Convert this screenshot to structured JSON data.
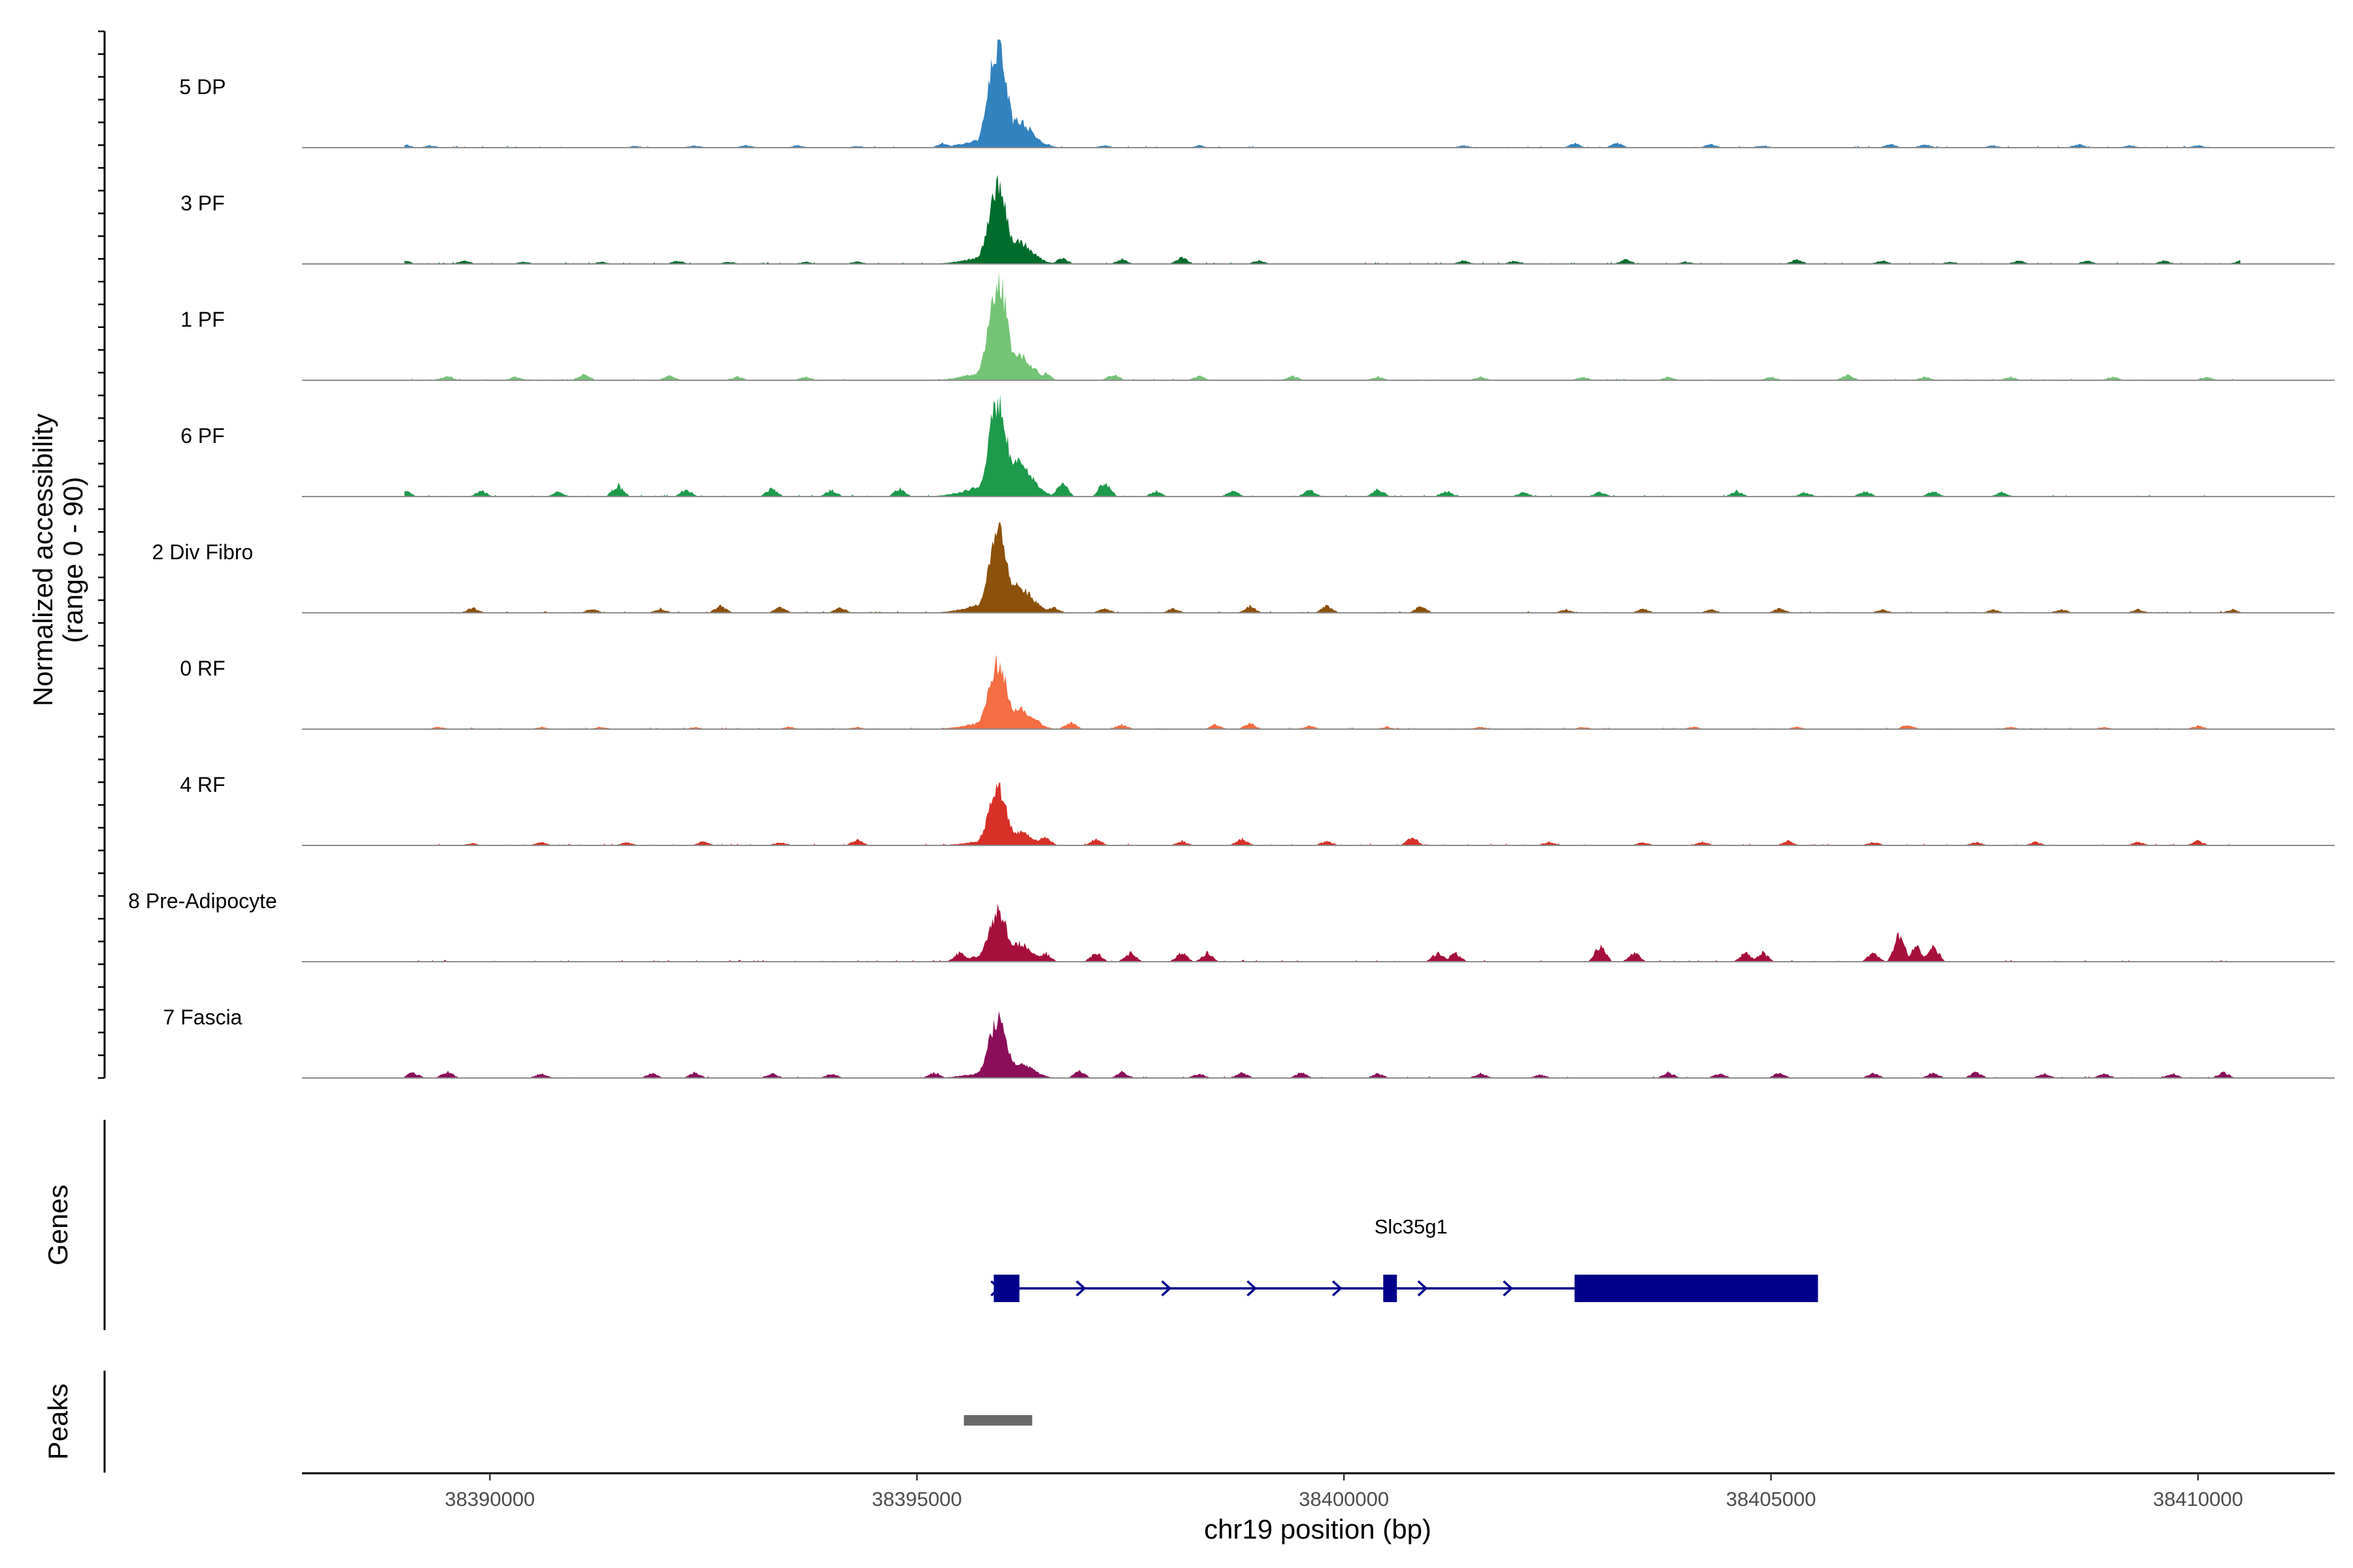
{
  "chart_data": {
    "type": "area",
    "title": "",
    "ylabel": "Normalized accessibility\n(range 0 - 90)",
    "xlabel": "chr19 position (bp)",
    "xlim": [
      38387800,
      38411600
    ],
    "ylim": [
      0,
      90
    ],
    "x_ticks": [
      38390000,
      38395000,
      38400000,
      38405000,
      38410000
    ],
    "x_tick_labels": [
      "38390000",
      "38395000",
      "38400000",
      "38405000",
      "38410000"
    ],
    "series": [
      {
        "name": "5 DP",
        "color": "#3182BD",
        "peak": 90,
        "shoulder": 24,
        "bumps": [
          [
            38389000,
            3
          ],
          [
            38389300,
            2
          ],
          [
            38391700,
            1.5
          ],
          [
            38392400,
            2
          ],
          [
            38393000,
            2
          ],
          [
            38393600,
            2
          ],
          [
            38394300,
            1.5
          ],
          [
            38395300,
            4
          ],
          [
            38396500,
            4
          ],
          [
            38397200,
            2
          ],
          [
            38398300,
            2
          ],
          [
            38401400,
            2
          ],
          [
            38402700,
            4
          ],
          [
            38403200,
            4
          ],
          [
            38404300,
            3
          ],
          [
            38404900,
            2
          ],
          [
            38406400,
            3
          ],
          [
            38406800,
            3
          ],
          [
            38407600,
            2
          ],
          [
            38408600,
            3
          ],
          [
            38409200,
            2
          ],
          [
            38410000,
            2
          ],
          [
            38410700,
            2
          ]
        ]
      },
      {
        "name": "3 PF",
        "color": "#006D2C",
        "peak": 72,
        "shoulder": 20,
        "bumps": [
          [
            38389000,
            3
          ],
          [
            38389700,
            3
          ],
          [
            38390400,
            2
          ],
          [
            38391300,
            2
          ],
          [
            38392200,
            3
          ],
          [
            38392800,
            2
          ],
          [
            38393700,
            2
          ],
          [
            38394300,
            2
          ],
          [
            38396700,
            5
          ],
          [
            38397400,
            4
          ],
          [
            38398100,
            6
          ],
          [
            38399000,
            3
          ],
          [
            38401400,
            3
          ],
          [
            38402000,
            3
          ],
          [
            38403300,
            4
          ],
          [
            38404000,
            2
          ],
          [
            38405300,
            4
          ],
          [
            38406300,
            3
          ],
          [
            38407100,
            2
          ],
          [
            38407900,
            3
          ],
          [
            38408700,
            3
          ],
          [
            38409600,
            3
          ],
          [
            38410500,
            3
          ]
        ]
      },
      {
        "name": "1 PF",
        "color": "#74C476",
        "peak": 90,
        "shoulder": 22,
        "bumps": [
          [
            38389500,
            4
          ],
          [
            38390300,
            3
          ],
          [
            38391100,
            6
          ],
          [
            38392100,
            4
          ],
          [
            38392900,
            3
          ],
          [
            38393700,
            3
          ],
          [
            38396500,
            6
          ],
          [
            38397300,
            5
          ],
          [
            38398300,
            4
          ],
          [
            38399400,
            4
          ],
          [
            38400400,
            3
          ],
          [
            38401600,
            3
          ],
          [
            38402800,
            3
          ],
          [
            38403800,
            3
          ],
          [
            38405000,
            3
          ],
          [
            38405900,
            5
          ],
          [
            38406800,
            3
          ],
          [
            38407800,
            3
          ],
          [
            38409000,
            3
          ],
          [
            38410100,
            3
          ]
        ]
      },
      {
        "name": "6 PF",
        "color": "#1D9A4B",
        "peak": 85,
        "shoulder": 30,
        "bumps": [
          [
            38389000,
            6
          ],
          [
            38389900,
            5
          ],
          [
            38390800,
            4
          ],
          [
            38391500,
            10
          ],
          [
            38392300,
            6
          ],
          [
            38393300,
            7
          ],
          [
            38394000,
            6
          ],
          [
            38394800,
            7
          ],
          [
            38396700,
            12
          ],
          [
            38397200,
            14
          ],
          [
            38397800,
            5
          ],
          [
            38398700,
            5
          ],
          [
            38399600,
            6
          ],
          [
            38400400,
            7
          ],
          [
            38401200,
            5
          ],
          [
            38402100,
            4
          ],
          [
            38403000,
            4
          ],
          [
            38404600,
            5
          ],
          [
            38405400,
            4
          ],
          [
            38406100,
            5
          ],
          [
            38406900,
            5
          ],
          [
            38407700,
            4
          ]
        ]
      },
      {
        "name": "2 Div Fibro",
        "color": "#8C510A",
        "peak": 72,
        "shoulder": 24,
        "bumps": [
          [
            38389800,
            5
          ],
          [
            38391200,
            4
          ],
          [
            38392000,
            4
          ],
          [
            38392700,
            6
          ],
          [
            38393400,
            5
          ],
          [
            38394100,
            5
          ],
          [
            38396600,
            5
          ],
          [
            38397200,
            4
          ],
          [
            38398000,
            4
          ],
          [
            38398900,
            6
          ],
          [
            38399800,
            7
          ],
          [
            38400900,
            6
          ],
          [
            38402600,
            3
          ],
          [
            38403500,
            4
          ],
          [
            38404300,
            3
          ],
          [
            38405100,
            4
          ],
          [
            38406300,
            3
          ],
          [
            38407600,
            3
          ],
          [
            38408400,
            3
          ],
          [
            38409300,
            3
          ],
          [
            38410400,
            3
          ]
        ]
      },
      {
        "name": "0 RF",
        "color": "#F46D43",
        "peak": 58,
        "shoulder": 18,
        "bumps": [
          [
            38389400,
            2
          ],
          [
            38390600,
            2
          ],
          [
            38391300,
            2
          ],
          [
            38392400,
            2
          ],
          [
            38393500,
            2
          ],
          [
            38394300,
            2
          ],
          [
            38396400,
            8
          ],
          [
            38396800,
            6
          ],
          [
            38397400,
            4
          ],
          [
            38398500,
            4
          ],
          [
            38398900,
            5
          ],
          [
            38399600,
            3
          ],
          [
            38400500,
            2
          ],
          [
            38401600,
            2
          ],
          [
            38402800,
            2
          ],
          [
            38404100,
            2
          ],
          [
            38405300,
            2
          ],
          [
            38406600,
            4
          ],
          [
            38407800,
            2
          ],
          [
            38408900,
            2
          ],
          [
            38410000,
            3
          ]
        ]
      },
      {
        "name": "4 RF",
        "color": "#D73027",
        "peak": 50,
        "shoulder": 12,
        "bumps": [
          [
            38389800,
            2
          ],
          [
            38390600,
            3
          ],
          [
            38391600,
            3
          ],
          [
            38392500,
            4
          ],
          [
            38393400,
            3
          ],
          [
            38394300,
            5
          ],
          [
            38396500,
            8
          ],
          [
            38397100,
            6
          ],
          [
            38398100,
            4
          ],
          [
            38398800,
            6
          ],
          [
            38399800,
            4
          ],
          [
            38400800,
            7
          ],
          [
            38402400,
            3
          ],
          [
            38403500,
            3
          ],
          [
            38404200,
            3
          ],
          [
            38405200,
            4
          ],
          [
            38406200,
            3
          ],
          [
            38407400,
            3
          ],
          [
            38408100,
            3
          ],
          [
            38409300,
            3
          ],
          [
            38410000,
            4
          ]
        ]
      },
      {
        "name": "8 Pre-Adipocyte",
        "color": "#A50F3C",
        "peak": 45,
        "shoulder": 16,
        "bumps": [
          [
            38395500,
            8
          ],
          [
            38396000,
            10
          ],
          [
            38396500,
            8
          ],
          [
            38397100,
            8
          ],
          [
            38397500,
            8
          ],
          [
            38398100,
            8
          ],
          [
            38398400,
            8
          ],
          [
            38401100,
            8
          ],
          [
            38401300,
            8
          ],
          [
            38403000,
            14
          ],
          [
            38403400,
            8
          ],
          [
            38404700,
            8
          ],
          [
            38404900,
            8
          ],
          [
            38406200,
            8
          ],
          [
            38406500,
            24
          ],
          [
            38406700,
            14
          ],
          [
            38406900,
            14
          ]
        ]
      },
      {
        "name": "7 Fascia",
        "color": "#8B0E5A",
        "peak": 52,
        "shoulder": 14,
        "bumps": [
          [
            38389100,
            5
          ],
          [
            38389500,
            6
          ],
          [
            38390600,
            4
          ],
          [
            38391900,
            4
          ],
          [
            38392400,
            5
          ],
          [
            38393300,
            4
          ],
          [
            38394000,
            4
          ],
          [
            38395200,
            5
          ],
          [
            38396900,
            6
          ],
          [
            38397400,
            5
          ],
          [
            38398300,
            4
          ],
          [
            38398800,
            5
          ],
          [
            38399500,
            5
          ],
          [
            38400400,
            4
          ],
          [
            38401600,
            4
          ],
          [
            38402300,
            3
          ],
          [
            38403800,
            5
          ],
          [
            38404400,
            4
          ],
          [
            38405100,
            5
          ],
          [
            38406200,
            4
          ],
          [
            38406900,
            5
          ],
          [
            38407400,
            5
          ],
          [
            38408200,
            4
          ],
          [
            38408900,
            4
          ],
          [
            38409700,
            4
          ],
          [
            38410300,
            5
          ]
        ]
      }
    ],
    "genes_panel": {
      "label": "Genes",
      "gene_name": "Slc35g1",
      "strand": "+",
      "start": 38395900,
      "end": 38405550,
      "exons": [
        [
          38395900,
          38396200
        ],
        [
          38400460,
          38400620
        ],
        [
          38402700,
          38405550
        ]
      ],
      "color": "#00008B"
    },
    "peaks_panel": {
      "label": "Peaks",
      "peaks": [
        [
          38395550,
          38396350
        ]
      ],
      "color": "#696969"
    },
    "peak_center": 38395950
  }
}
